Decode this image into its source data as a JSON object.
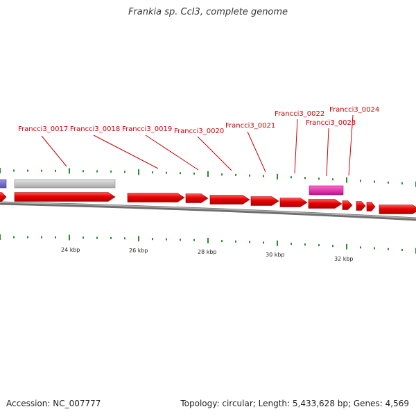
{
  "title": "Frankia sp. CcI3, complete genome",
  "footer": {
    "accession": "Accession: NC_007777",
    "stats": "Topology: circular; Length: 5,433,628 bp; Genes: 4,569"
  },
  "genes": [
    "Francci3_0017",
    "Francci3_0018",
    "Francci3_0019",
    "Francci3_0020",
    "Francci3_0021",
    "Francci3_0022",
    "Francci3_0023",
    "Francci3_0024"
  ],
  "scale_labels": [
    "24 kbp",
    "26 kbp",
    "28 kbp",
    "30 kbp",
    "32 kbp"
  ],
  "colors": {
    "gene": "#e00000",
    "pseudo": "#c4c4c4",
    "rna": "#e0169e",
    "misc": "#7a6fd0",
    "tick": "#2a8a2a",
    "label": "#cc0000",
    "backbone": "#888888"
  }
}
